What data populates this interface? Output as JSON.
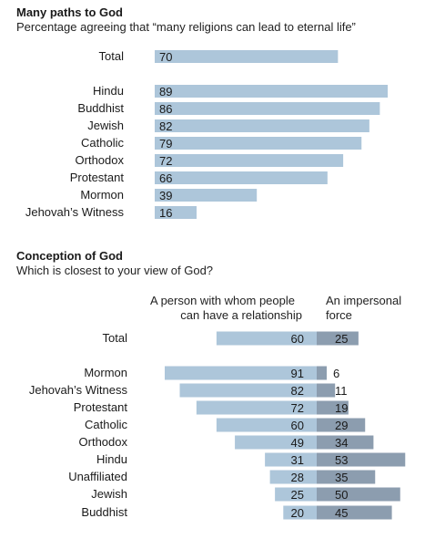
{
  "colors": {
    "light_bar": "#adc6da",
    "dark_bar": "#8c9daf",
    "text": "#1a1a1a"
  },
  "chart_data": [
    {
      "type": "bar",
      "orientation": "horizontal",
      "title": "Many paths to God",
      "subtitle": "Percentage agreeing that “many religions can lead to eternal life”",
      "categories": [
        "Total",
        "Hindu",
        "Buddhist",
        "Jewish",
        "Catholic",
        "Orthodox",
        "Protestant",
        "Mormon",
        "Jehovah’s Witness"
      ],
      "values": [
        70,
        89,
        86,
        82,
        79,
        72,
        66,
        39,
        16
      ],
      "xlim": [
        0,
        90
      ],
      "grid": false
    },
    {
      "type": "bar",
      "orientation": "horizontal",
      "stacked": "diverging",
      "title": "Conception of God",
      "subtitle": "Which is closest to your view of God?",
      "categories": [
        "Total",
        "Mormon",
        "Jehovah’s Witness",
        "Protestant",
        "Catholic",
        "Orthodox",
        "Hindu",
        "Unaffiliated",
        "Jewish",
        "Buddhist"
      ],
      "series": [
        {
          "name": "A person with whom people can have a relationship",
          "values": [
            60,
            91,
            82,
            72,
            60,
            49,
            31,
            28,
            25,
            20
          ]
        },
        {
          "name": "An impersonal force",
          "values": [
            25,
            6,
            11,
            19,
            29,
            34,
            53,
            35,
            50,
            45
          ]
        }
      ],
      "header_left_line1": "A person with whom people",
      "header_left_line2": "can have a relationship",
      "header_right_line1": "An impersonal",
      "header_right_line2": "force",
      "grid": false
    }
  ]
}
